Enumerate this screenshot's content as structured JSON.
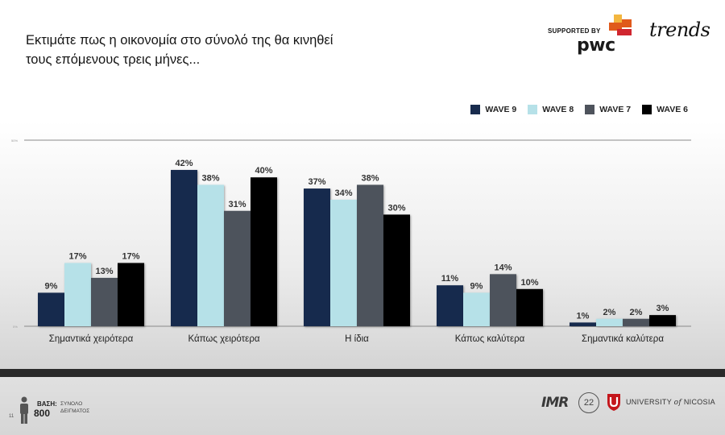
{
  "page": {
    "title_line1": "Εκτιμάτε πως η οικονομία στο σύνολό της θα κινηθεί",
    "title_line2": "τους επόμενους τρεις  μήνες...",
    "supported_by": "SUPPORTED BY",
    "pwc_logo_text": "pwc",
    "trends_logo_text": "trends",
    "page_number": "11"
  },
  "footer": {
    "basi_label": "ΒΑΣΗ:",
    "basi_value": "800",
    "basi_description_line1": "ΣΥΝΟΛΟ",
    "basi_description_line2": "ΔΕΙΓΜΑΤΟΣ",
    "imr_logo_text": "IMR",
    "badge_number": "22",
    "unic_prefix": "UNIVERSITY",
    "unic_of": "of",
    "unic_suffix": "NICOSIA"
  },
  "colors": {
    "wave9": "#182b4d",
    "wave8": "#b6e1e8",
    "wave7": "#4e535c",
    "wave6": "#000000",
    "pwc_orange": "#e05a1b",
    "pwc_red": "#d0262f",
    "unic_red": "#c4161c"
  },
  "chart_data": {
    "type": "bar",
    "categories": [
      "Σημαντικά χειρότερα",
      "Κάπως χειρότερα",
      "Η ίδια",
      "Κάπως καλύτερα",
      "Σημαντικά καλύτερα"
    ],
    "series": [
      {
        "name": "WAVE 9",
        "values": [
          9,
          42,
          37,
          11,
          1
        ]
      },
      {
        "name": "WAVE 8",
        "values": [
          17,
          38,
          34,
          9,
          2
        ]
      },
      {
        "name": "WAVE 7",
        "values": [
          13,
          31,
          38,
          14,
          2
        ]
      },
      {
        "name": "WAVE 6",
        "values": [
          17,
          40,
          30,
          10,
          3
        ]
      }
    ],
    "value_suffix": "%",
    "ylim": [
      0,
      50
    ],
    "y_tick_labels": [
      "50%",
      "0%"
    ],
    "legend_position": "top-right",
    "grid": false
  }
}
